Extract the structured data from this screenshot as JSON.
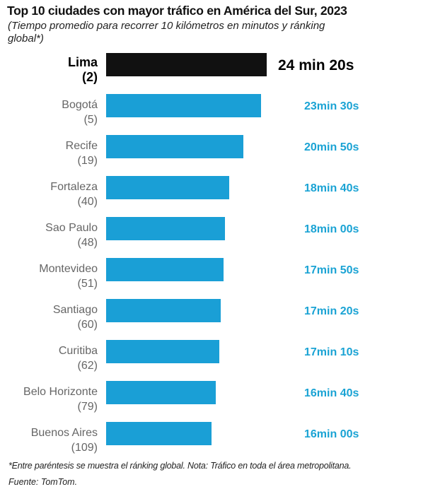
{
  "chart_data": {
    "type": "bar",
    "orientation": "horizontal",
    "title": "Top 10 ciudades con mayor tráfico en América del Sur, 2023",
    "subtitle": "(Tiempo promedio para recorrer 10 kilómetros en minutos y ránking global*)",
    "unit": "seconds",
    "categories": [
      "Lima",
      "Bogotá",
      "Recife",
      "Fortaleza",
      "Sao Paulo",
      "Montevideo",
      "Santiago",
      "Curitiba",
      "Belo Horizonte",
      "Buenos Aires"
    ],
    "rankings": [
      "(2)",
      "(5)",
      "(19)",
      "(40)",
      "(48)",
      "(51)",
      "(60)",
      "(62)",
      "(79)",
      "(109)"
    ],
    "values": [
      1460,
      1410,
      1250,
      1120,
      1080,
      1070,
      1040,
      1030,
      1000,
      960
    ],
    "value_labels": [
      "24 min  20s",
      "23min 30s",
      "20min 50s",
      "18min 40s",
      "18min 00s",
      "17min 50s",
      "17min 20s",
      "17min 10s",
      "16min 40s",
      "16min 00s"
    ],
    "highlight_index": 0,
    "colors": {
      "highlight": "#111111",
      "bar": "#1a9fd6",
      "value": "#1aa3d4"
    }
  },
  "footnote": "*Entre paréntesis se muestra el ránking global.  Nota: Tráfico en toda el área metropolitana.",
  "source": "Fuente: TomTom."
}
